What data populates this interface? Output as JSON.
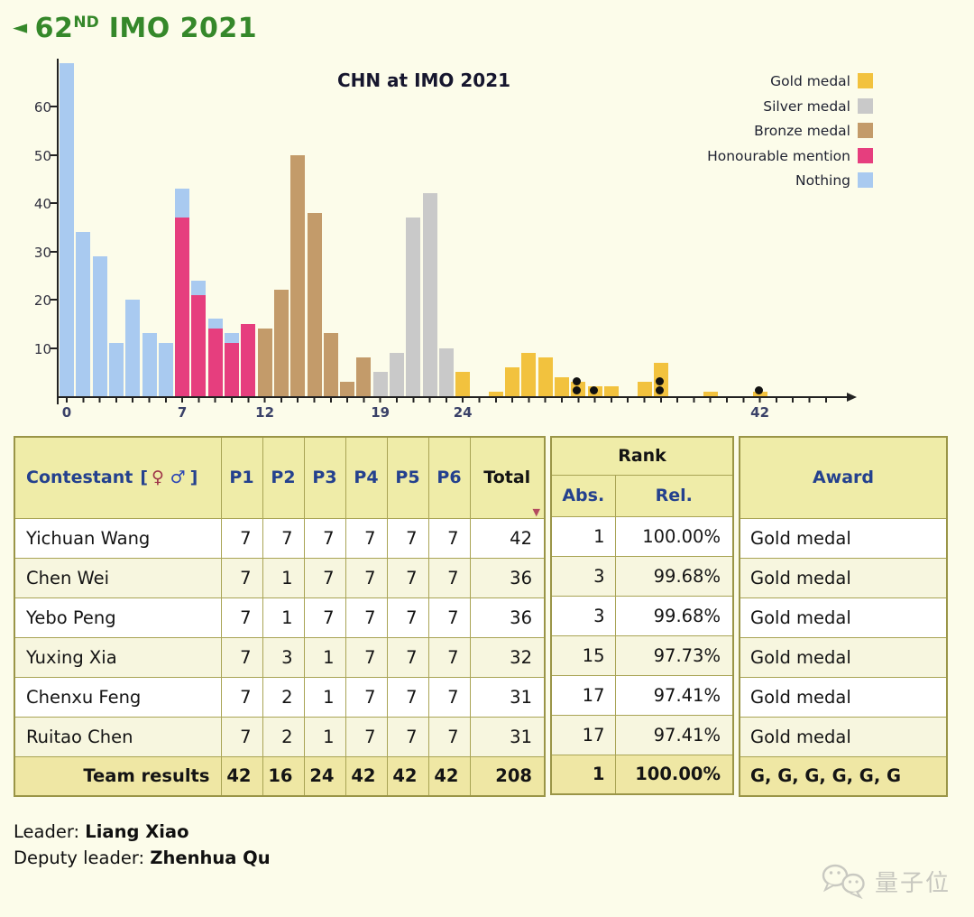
{
  "page": {
    "title": {
      "arrow": "◄",
      "number": "62",
      "ordinal": "ND",
      "rest": " IMO 2021"
    }
  },
  "chart_data": {
    "type": "bar",
    "title": "CHN at IMO 2021",
    "xlabel": "",
    "ylabel": "",
    "x_axis": {
      "min": 0,
      "max": 42,
      "tick_labels": [
        0,
        7,
        12,
        19,
        24,
        42
      ]
    },
    "y_axis": {
      "ticks": [
        10,
        20,
        30,
        40,
        50,
        60
      ],
      "max": 70
    },
    "grid": false,
    "legend_position": "top-right",
    "legend": [
      {
        "label": "Gold medal",
        "category": "gold"
      },
      {
        "label": "Silver medal",
        "category": "silver"
      },
      {
        "label": "Bronze medal",
        "category": "bronze"
      },
      {
        "label": "Honourable mention",
        "category": "honourable_mention"
      },
      {
        "label": "Nothing",
        "category": "nothing"
      }
    ],
    "colors": {
      "gold": "#F2C23E",
      "silver": "#C9C9C9",
      "bronze": "#C39B6A",
      "honourable_mention": "#E63E7E",
      "nothing": "#A9CAF0"
    },
    "bars": [
      {
        "x": 0,
        "stack": [
          [
            "nothing",
            69
          ]
        ]
      },
      {
        "x": 1,
        "stack": [
          [
            "nothing",
            34
          ]
        ]
      },
      {
        "x": 2,
        "stack": [
          [
            "nothing",
            29
          ]
        ]
      },
      {
        "x": 3,
        "stack": [
          [
            "nothing",
            11
          ]
        ]
      },
      {
        "x": 4,
        "stack": [
          [
            "nothing",
            20
          ]
        ]
      },
      {
        "x": 5,
        "stack": [
          [
            "nothing",
            13
          ]
        ]
      },
      {
        "x": 6,
        "stack": [
          [
            "nothing",
            11
          ]
        ]
      },
      {
        "x": 7,
        "stack": [
          [
            "honourable_mention",
            37
          ],
          [
            "nothing",
            6
          ]
        ]
      },
      {
        "x": 8,
        "stack": [
          [
            "honourable_mention",
            21
          ],
          [
            "nothing",
            3
          ]
        ]
      },
      {
        "x": 9,
        "stack": [
          [
            "honourable_mention",
            14
          ],
          [
            "nothing",
            2
          ]
        ]
      },
      {
        "x": 10,
        "stack": [
          [
            "honourable_mention",
            11
          ],
          [
            "nothing",
            2
          ]
        ]
      },
      {
        "x": 11,
        "stack": [
          [
            "honourable_mention",
            15
          ]
        ]
      },
      {
        "x": 12,
        "stack": [
          [
            "bronze",
            14
          ]
        ]
      },
      {
        "x": 13,
        "stack": [
          [
            "bronze",
            22
          ]
        ]
      },
      {
        "x": 14,
        "stack": [
          [
            "bronze",
            50
          ]
        ]
      },
      {
        "x": 15,
        "stack": [
          [
            "bronze",
            38
          ]
        ]
      },
      {
        "x": 16,
        "stack": [
          [
            "bronze",
            13
          ]
        ]
      },
      {
        "x": 17,
        "stack": [
          [
            "bronze",
            3
          ]
        ]
      },
      {
        "x": 18,
        "stack": [
          [
            "bronze",
            8
          ]
        ]
      },
      {
        "x": 19,
        "stack": [
          [
            "silver",
            5
          ]
        ]
      },
      {
        "x": 20,
        "stack": [
          [
            "silver",
            9
          ]
        ]
      },
      {
        "x": 21,
        "stack": [
          [
            "silver",
            37
          ]
        ]
      },
      {
        "x": 22,
        "stack": [
          [
            "silver",
            42
          ]
        ]
      },
      {
        "x": 23,
        "stack": [
          [
            "silver",
            10
          ]
        ]
      },
      {
        "x": 24,
        "stack": [
          [
            "gold",
            5
          ]
        ]
      },
      {
        "x": 26,
        "stack": [
          [
            "gold",
            1
          ]
        ]
      },
      {
        "x": 27,
        "stack": [
          [
            "gold",
            6
          ]
        ]
      },
      {
        "x": 28,
        "stack": [
          [
            "gold",
            9
          ]
        ]
      },
      {
        "x": 29,
        "stack": [
          [
            "gold",
            8
          ]
        ]
      },
      {
        "x": 30,
        "stack": [
          [
            "gold",
            4
          ]
        ]
      },
      {
        "x": 31,
        "stack": [
          [
            "gold",
            3
          ]
        ]
      },
      {
        "x": 32,
        "stack": [
          [
            "gold",
            2
          ]
        ]
      },
      {
        "x": 33,
        "stack": [
          [
            "gold",
            2
          ]
        ]
      },
      {
        "x": 35,
        "stack": [
          [
            "gold",
            3
          ]
        ]
      },
      {
        "x": 36,
        "stack": [
          [
            "gold",
            7
          ]
        ]
      },
      {
        "x": 39,
        "stack": [
          [
            "gold",
            1
          ]
        ]
      },
      {
        "x": 42,
        "stack": [
          [
            "gold",
            1
          ]
        ]
      }
    ],
    "marker_dots": [
      {
        "x": 31,
        "count": 2
      },
      {
        "x": 32,
        "count": 1
      },
      {
        "x": 36,
        "count": 2
      },
      {
        "x": 42,
        "count": 1
      }
    ]
  },
  "table": {
    "header": {
      "contestant": "Contestant",
      "bracket_open": "[",
      "female_symbol": "♀",
      "male_symbol": "♂",
      "bracket_close": "]",
      "problems": [
        "P1",
        "P2",
        "P3",
        "P4",
        "P5",
        "P6"
      ],
      "total": "Total",
      "sort_indicator": "▼",
      "rank": "Rank",
      "abs": "Abs.",
      "rel": "Rel.",
      "award": "Award"
    },
    "rows": [
      {
        "name": "Yichuan Wang",
        "scores": [
          7,
          7,
          7,
          7,
          7,
          7
        ],
        "total": 42,
        "abs": 1,
        "rel": "100.00%",
        "award": "Gold medal"
      },
      {
        "name": "Chen Wei",
        "scores": [
          7,
          1,
          7,
          7,
          7,
          7
        ],
        "total": 36,
        "abs": 3,
        "rel": "99.68%",
        "award": "Gold medal"
      },
      {
        "name": "Yebo Peng",
        "scores": [
          7,
          1,
          7,
          7,
          7,
          7
        ],
        "total": 36,
        "abs": 3,
        "rel": "99.68%",
        "award": "Gold medal"
      },
      {
        "name": "Yuxing Xia",
        "scores": [
          7,
          3,
          1,
          7,
          7,
          7
        ],
        "total": 32,
        "abs": 15,
        "rel": "97.73%",
        "award": "Gold medal"
      },
      {
        "name": "Chenxu Feng",
        "scores": [
          7,
          2,
          1,
          7,
          7,
          7
        ],
        "total": 31,
        "abs": 17,
        "rel": "97.41%",
        "award": "Gold medal"
      },
      {
        "name": "Ruitao Chen",
        "scores": [
          7,
          2,
          1,
          7,
          7,
          7
        ],
        "total": 31,
        "abs": 17,
        "rel": "97.41%",
        "award": "Gold medal"
      }
    ],
    "team": {
      "label": "Team results",
      "scores": [
        42,
        16,
        24,
        42,
        42,
        42
      ],
      "total": 208,
      "abs": 1,
      "rel": "100.00%",
      "award": "G, G, G, G, G, G"
    }
  },
  "footer": {
    "leader_label": "Leader:",
    "leader_name": "Liang Xiao",
    "deputy_label": "Deputy leader:",
    "deputy_name": "Zhenhua Qu"
  },
  "watermark": {
    "text": "量子位"
  }
}
